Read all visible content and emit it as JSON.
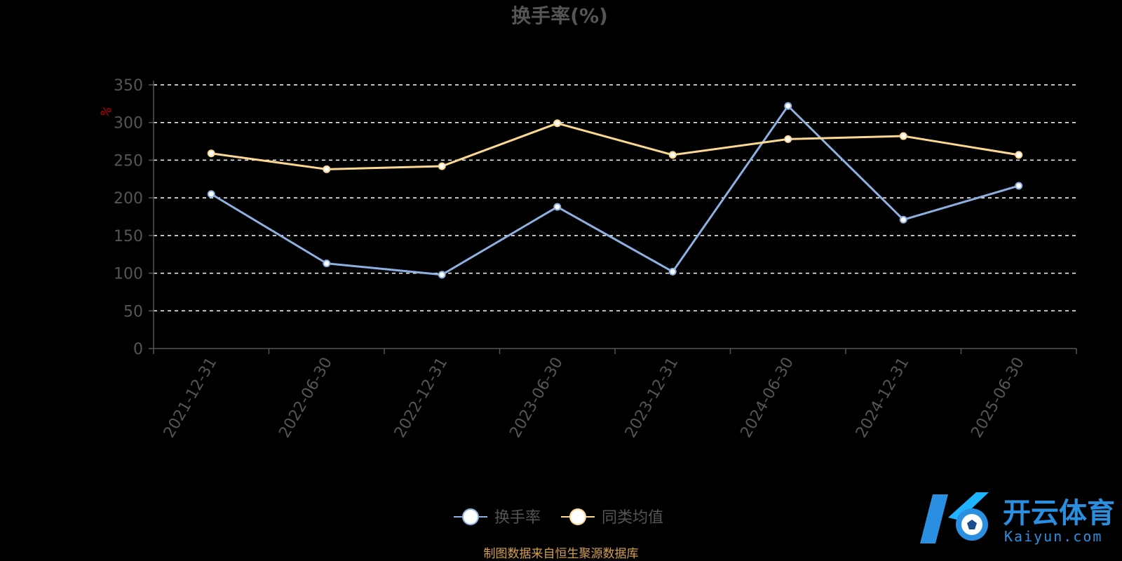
{
  "chart_data": {
    "type": "line",
    "title": "换手率(%)",
    "y_unit": "%",
    "ylim": [
      0,
      350
    ],
    "yticks": [
      0,
      50,
      100,
      150,
      200,
      250,
      300,
      350
    ],
    "categories": [
      "2021-12-31",
      "2022-06-30",
      "2022-12-31",
      "2023-06-30",
      "2023-12-31",
      "2024-06-30",
      "2024-12-31",
      "2025-06-30"
    ],
    "grid": true,
    "legend_position": "bottom-center",
    "series": [
      {
        "name": "换手率",
        "color": "#8eb0e0",
        "values": [
          205,
          113,
          98,
          188,
          102,
          322,
          171,
          216
        ]
      },
      {
        "name": "同类均值",
        "color": "#fbd891",
        "values": [
          259,
          238,
          242,
          299,
          257,
          278,
          282,
          257
        ]
      }
    ]
  },
  "source_note": "制图数据来自恒生聚源数据库",
  "watermark": {
    "brand": "开云体育",
    "site": "Kaiyun.com"
  },
  "colors": {
    "background": "#000000",
    "grid": "#ffffff",
    "axis": "#555555"
  }
}
